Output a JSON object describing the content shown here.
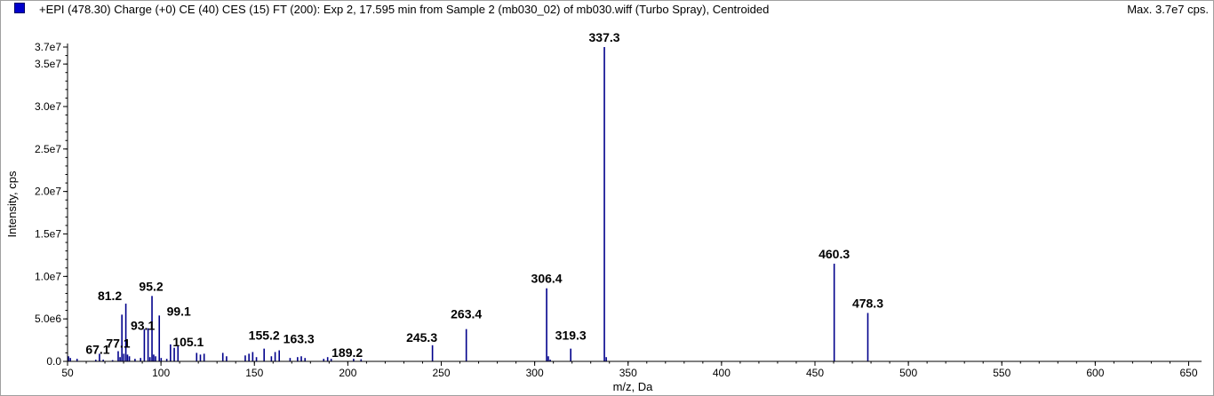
{
  "header": {
    "title": "+EPI (478.30) Charge (+0) CE (40) CES (15) FT (200): Exp 2, 17.595 min from Sample 2 (mb030_02) of mb030.wiff (Turbo Spray), Centroided",
    "max": "Max. 3.7e7 cps.",
    "legend_color": "#0000cc"
  },
  "chart_data": {
    "type": "bar",
    "xlabel": "m/z, Da",
    "ylabel": "Intensity, cps",
    "xlim": [
      50,
      655
    ],
    "ylim": [
      0,
      37000000
    ],
    "x_ticks": [
      50,
      100,
      150,
      200,
      250,
      300,
      350,
      400,
      450,
      500,
      550,
      600,
      650
    ],
    "y_ticks": [
      {
        "value": 0,
        "label": "0.0"
      },
      {
        "value": 5000000,
        "label": "5.0e6"
      },
      {
        "value": 10000000,
        "label": "1.0e7"
      },
      {
        "value": 15000000,
        "label": "1.5e7"
      },
      {
        "value": 20000000,
        "label": "2.0e7"
      },
      {
        "value": 25000000,
        "label": "2.5e7"
      },
      {
        "value": 30000000,
        "label": "3.0e7"
      },
      {
        "value": 35000000,
        "label": "3.5e7"
      },
      {
        "value": 37000000,
        "label": "3.7e7"
      }
    ],
    "series_color": "#00008b",
    "peaks": [
      {
        "mz": 50.5,
        "intensity": 600000
      },
      {
        "mz": 51.5,
        "intensity": 400000
      },
      {
        "mz": 55.1,
        "intensity": 300000
      },
      {
        "mz": 65.1,
        "intensity": 200000
      },
      {
        "mz": 67.1,
        "intensity": 900000
      },
      {
        "mz": 69.1,
        "intensity": 200000
      },
      {
        "mz": 74.1,
        "intensity": 150000
      },
      {
        "mz": 77.1,
        "intensity": 1200000
      },
      {
        "mz": 78.1,
        "intensity": 500000
      },
      {
        "mz": 79.1,
        "intensity": 5500000
      },
      {
        "mz": 80.1,
        "intensity": 900000
      },
      {
        "mz": 81.2,
        "intensity": 6800000
      },
      {
        "mz": 82.1,
        "intensity": 800000
      },
      {
        "mz": 83.1,
        "intensity": 600000
      },
      {
        "mz": 86.1,
        "intensity": 300000
      },
      {
        "mz": 89.1,
        "intensity": 400000
      },
      {
        "mz": 91.1,
        "intensity": 3800000
      },
      {
        "mz": 93.1,
        "intensity": 3900000
      },
      {
        "mz": 94.1,
        "intensity": 500000
      },
      {
        "mz": 95.2,
        "intensity": 7700000
      },
      {
        "mz": 96.1,
        "intensity": 800000
      },
      {
        "mz": 97.1,
        "intensity": 600000
      },
      {
        "mz": 99.1,
        "intensity": 5400000
      },
      {
        "mz": 100.1,
        "intensity": 400000
      },
      {
        "mz": 103.1,
        "intensity": 300000
      },
      {
        "mz": 105.1,
        "intensity": 2000000
      },
      {
        "mz": 107.1,
        "intensity": 1600000
      },
      {
        "mz": 109.1,
        "intensity": 1800000
      },
      {
        "mz": 119.1,
        "intensity": 1000000
      },
      {
        "mz": 121.1,
        "intensity": 800000
      },
      {
        "mz": 123.1,
        "intensity": 900000
      },
      {
        "mz": 133.1,
        "intensity": 1000000
      },
      {
        "mz": 135.1,
        "intensity": 600000
      },
      {
        "mz": 145.1,
        "intensity": 700000
      },
      {
        "mz": 147.1,
        "intensity": 900000
      },
      {
        "mz": 149.1,
        "intensity": 1100000
      },
      {
        "mz": 151.1,
        "intensity": 500000
      },
      {
        "mz": 155.2,
        "intensity": 1500000
      },
      {
        "mz": 159.1,
        "intensity": 600000
      },
      {
        "mz": 161.1,
        "intensity": 1100000
      },
      {
        "mz": 163.3,
        "intensity": 1300000
      },
      {
        "mz": 169.1,
        "intensity": 400000
      },
      {
        "mz": 173.1,
        "intensity": 500000
      },
      {
        "mz": 175.1,
        "intensity": 600000
      },
      {
        "mz": 177.1,
        "intensity": 400000
      },
      {
        "mz": 187.1,
        "intensity": 300000
      },
      {
        "mz": 189.2,
        "intensity": 500000
      },
      {
        "mz": 191.1,
        "intensity": 300000
      },
      {
        "mz": 203.1,
        "intensity": 300000
      },
      {
        "mz": 207.1,
        "intensity": 250000
      },
      {
        "mz": 245.3,
        "intensity": 1900000
      },
      {
        "mz": 263.4,
        "intensity": 3800000
      },
      {
        "mz": 306.4,
        "intensity": 8600000
      },
      {
        "mz": 307.3,
        "intensity": 600000
      },
      {
        "mz": 308.3,
        "intensity": 200000
      },
      {
        "mz": 319.3,
        "intensity": 1500000
      },
      {
        "mz": 337.3,
        "intensity": 37000000
      },
      {
        "mz": 338.3,
        "intensity": 500000
      },
      {
        "mz": 460.3,
        "intensity": 11500000
      },
      {
        "mz": 478.3,
        "intensity": 5700000
      }
    ],
    "labels": [
      {
        "text": "67.1",
        "mz": 67.1,
        "intensity": 900000
      },
      {
        "text": "77.1",
        "mz": 77.1,
        "intensity": 1200000
      },
      {
        "text": "81.2",
        "mz": 81.2,
        "intensity": 6800000
      },
      {
        "text": "93.1",
        "mz": 93.1,
        "intensity": 3900000
      },
      {
        "text": "95.2",
        "mz": 95.2,
        "intensity": 7700000
      },
      {
        "text": "99.1",
        "mz": 99.1,
        "intensity": 5400000
      },
      {
        "text": "105.1",
        "mz": 105.1,
        "intensity": 2000000
      },
      {
        "text": "155.2",
        "mz": 155.2,
        "intensity": 1500000
      },
      {
        "text": "163.3",
        "mz": 163.3,
        "intensity": 1300000
      },
      {
        "text": "189.2",
        "mz": 189.2,
        "intensity": 500000
      },
      {
        "text": "245.3",
        "mz": 245.3,
        "intensity": 1900000
      },
      {
        "text": "263.4",
        "mz": 263.4,
        "intensity": 3800000
      },
      {
        "text": "306.4",
        "mz": 306.4,
        "intensity": 8600000
      },
      {
        "text": "319.3",
        "mz": 319.3,
        "intensity": 1500000
      },
      {
        "text": "337.3",
        "mz": 337.3,
        "intensity": 37000000
      },
      {
        "text": "460.3",
        "mz": 460.3,
        "intensity": 11500000
      },
      {
        "text": "478.3",
        "mz": 478.3,
        "intensity": 5700000
      }
    ]
  }
}
